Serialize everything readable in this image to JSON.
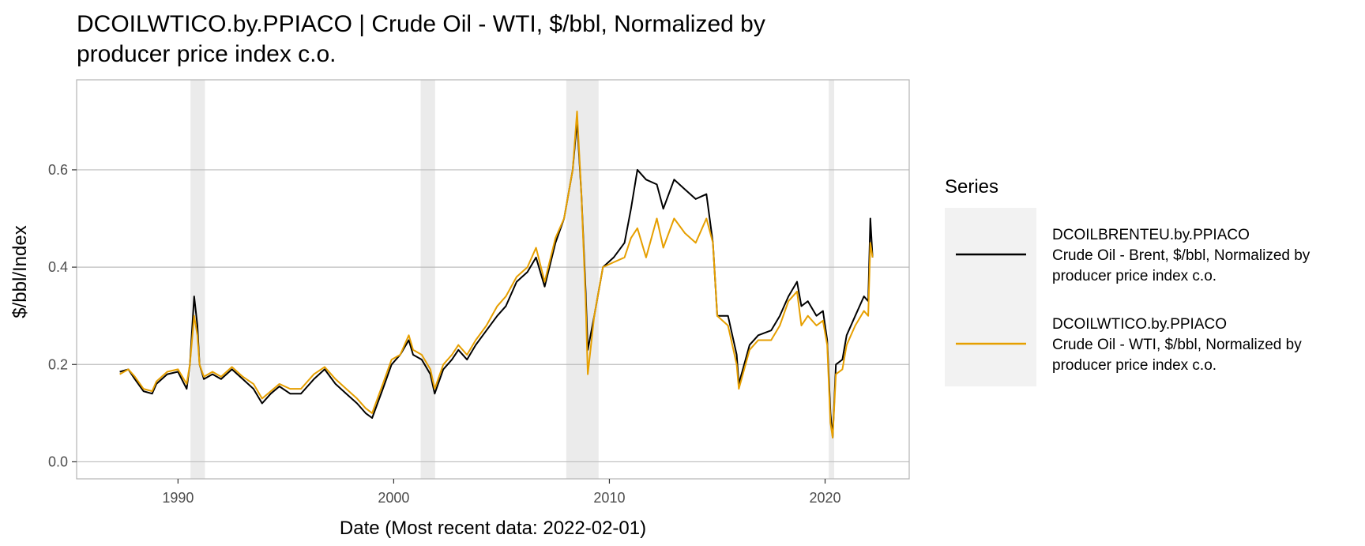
{
  "chart_data": {
    "type": "line",
    "title_lines": [
      "DCOILWTICO.by.PPIACO | Crude Oil - WTI, $/bbl, Normalized by",
      "producer price index c.o."
    ],
    "xlabel": "Date (Most recent data: 2022-02-01)",
    "ylabel": "$/bbl/Index",
    "xlim": [
      1985.3,
      2023.9
    ],
    "ylim": [
      -0.035,
      0.785
    ],
    "x_ticks": [
      1990,
      2000,
      2010,
      2020
    ],
    "y_ticks": [
      0.0,
      0.2,
      0.4,
      0.6
    ],
    "y_tick_labels": [
      "0.0",
      "0.2",
      "0.4",
      "0.6"
    ],
    "grid": true,
    "legend": {
      "title": "Series",
      "position": "right",
      "entries": [
        {
          "series": 0,
          "lines": [
            "DCOILBRENTEU.by.PPIACO",
            "Crude Oil - Brent, $/bbl, Normalized by",
            "producer price index c.o."
          ]
        },
        {
          "series": 1,
          "lines": [
            "DCOILWTICO.by.PPIACO",
            "Crude Oil - WTI, $/bbl, Normalized by",
            "producer price index c.o."
          ]
        }
      ]
    },
    "recessions": [
      [
        1990.58,
        1991.25
      ],
      [
        2001.25,
        2001.92
      ],
      [
        2008.0,
        2009.5
      ],
      [
        2020.17,
        2020.42
      ]
    ],
    "colors": {
      "recession": "#ebebeb",
      "grid": "#bdbdbd",
      "border": "#b3b3b3",
      "legend_bg": "#f2f2f2"
    },
    "series": [
      {
        "color": "#000000",
        "x": [
          1987.3,
          1987.7,
          1988.0,
          1988.4,
          1988.8,
          1989.0,
          1989.5,
          1990.0,
          1990.4,
          1990.55,
          1990.75,
          1990.9,
          1991.0,
          1991.2,
          1991.6,
          1992.0,
          1992.5,
          1993.0,
          1993.5,
          1993.9,
          1994.3,
          1994.7,
          1995.2,
          1995.7,
          1996.3,
          1996.8,
          1997.3,
          1997.8,
          1998.3,
          1998.7,
          1999.0,
          1999.5,
          1999.9,
          2000.3,
          2000.7,
          2000.9,
          2001.3,
          2001.7,
          2001.9,
          2002.3,
          2002.7,
          2003.0,
          2003.4,
          2003.8,
          2004.3,
          2004.8,
          2005.2,
          2005.7,
          2006.2,
          2006.6,
          2007.0,
          2007.5,
          2007.9,
          2008.3,
          2008.5,
          2008.7,
          2008.9,
          2009.0,
          2009.3,
          2009.7,
          2010.2,
          2010.7,
          2011.0,
          2011.3,
          2011.7,
          2012.2,
          2012.5,
          2013.0,
          2013.5,
          2014.0,
          2014.5,
          2014.8,
          2015.0,
          2015.5,
          2015.9,
          2016.0,
          2016.5,
          2016.9,
          2017.5,
          2017.9,
          2018.3,
          2018.7,
          2018.9,
          2019.2,
          2019.6,
          2019.9,
          2020.1,
          2020.25,
          2020.35,
          2020.5,
          2020.8,
          2021.0,
          2021.4,
          2021.8,
          2022.0,
          2022.1,
          2022.2
        ],
        "y": [
          0.185,
          0.19,
          0.17,
          0.145,
          0.14,
          0.16,
          0.18,
          0.185,
          0.15,
          0.2,
          0.34,
          0.28,
          0.2,
          0.17,
          0.18,
          0.17,
          0.19,
          0.17,
          0.15,
          0.12,
          0.14,
          0.155,
          0.14,
          0.14,
          0.17,
          0.19,
          0.16,
          0.14,
          0.12,
          0.1,
          0.09,
          0.15,
          0.2,
          0.22,
          0.25,
          0.22,
          0.21,
          0.18,
          0.14,
          0.19,
          0.21,
          0.23,
          0.21,
          0.24,
          0.27,
          0.3,
          0.32,
          0.37,
          0.39,
          0.42,
          0.36,
          0.45,
          0.5,
          0.6,
          0.7,
          0.55,
          0.35,
          0.23,
          0.3,
          0.4,
          0.42,
          0.45,
          0.52,
          0.6,
          0.58,
          0.57,
          0.52,
          0.58,
          0.56,
          0.54,
          0.55,
          0.45,
          0.3,
          0.3,
          0.22,
          0.16,
          0.24,
          0.26,
          0.27,
          0.3,
          0.34,
          0.37,
          0.32,
          0.33,
          0.3,
          0.31,
          0.25,
          0.1,
          0.05,
          0.2,
          0.21,
          0.26,
          0.3,
          0.34,
          0.33,
          0.5,
          0.42
        ]
      },
      {
        "color": "#E69F00",
        "x": [
          1987.3,
          1987.7,
          1988.0,
          1988.4,
          1988.8,
          1989.0,
          1989.5,
          1990.0,
          1990.4,
          1990.55,
          1990.75,
          1990.9,
          1991.0,
          1991.2,
          1991.6,
          1992.0,
          1992.5,
          1993.0,
          1993.5,
          1993.9,
          1994.3,
          1994.7,
          1995.2,
          1995.7,
          1996.3,
          1996.8,
          1997.3,
          1997.8,
          1998.3,
          1998.7,
          1999.0,
          1999.5,
          1999.9,
          2000.3,
          2000.7,
          2000.9,
          2001.3,
          2001.7,
          2001.9,
          2002.3,
          2002.7,
          2003.0,
          2003.4,
          2003.8,
          2004.3,
          2004.8,
          2005.2,
          2005.7,
          2006.2,
          2006.6,
          2007.0,
          2007.5,
          2007.9,
          2008.3,
          2008.5,
          2008.7,
          2008.9,
          2009.0,
          2009.3,
          2009.7,
          2010.2,
          2010.7,
          2011.0,
          2011.3,
          2011.7,
          2012.2,
          2012.5,
          2013.0,
          2013.5,
          2014.0,
          2014.5,
          2014.8,
          2015.0,
          2015.5,
          2015.9,
          2016.0,
          2016.5,
          2016.9,
          2017.5,
          2017.9,
          2018.3,
          2018.7,
          2018.9,
          2019.2,
          2019.6,
          2019.9,
          2020.1,
          2020.25,
          2020.35,
          2020.5,
          2020.8,
          2021.0,
          2021.4,
          2021.8,
          2022.0,
          2022.1,
          2022.2
        ],
        "y": [
          0.18,
          0.19,
          0.175,
          0.15,
          0.145,
          0.165,
          0.185,
          0.19,
          0.16,
          0.2,
          0.3,
          0.26,
          0.2,
          0.175,
          0.185,
          0.175,
          0.195,
          0.175,
          0.16,
          0.13,
          0.145,
          0.16,
          0.15,
          0.15,
          0.18,
          0.195,
          0.17,
          0.15,
          0.13,
          0.11,
          0.1,
          0.16,
          0.21,
          0.22,
          0.26,
          0.23,
          0.22,
          0.19,
          0.15,
          0.2,
          0.22,
          0.24,
          0.22,
          0.25,
          0.28,
          0.32,
          0.34,
          0.38,
          0.4,
          0.44,
          0.37,
          0.46,
          0.5,
          0.6,
          0.72,
          0.55,
          0.33,
          0.18,
          0.3,
          0.4,
          0.41,
          0.42,
          0.46,
          0.48,
          0.42,
          0.5,
          0.44,
          0.5,
          0.47,
          0.45,
          0.5,
          0.45,
          0.3,
          0.28,
          0.2,
          0.15,
          0.23,
          0.25,
          0.25,
          0.28,
          0.33,
          0.35,
          0.28,
          0.3,
          0.28,
          0.29,
          0.24,
          0.08,
          0.05,
          0.18,
          0.19,
          0.24,
          0.28,
          0.31,
          0.3,
          0.45,
          0.42
        ]
      }
    ]
  }
}
